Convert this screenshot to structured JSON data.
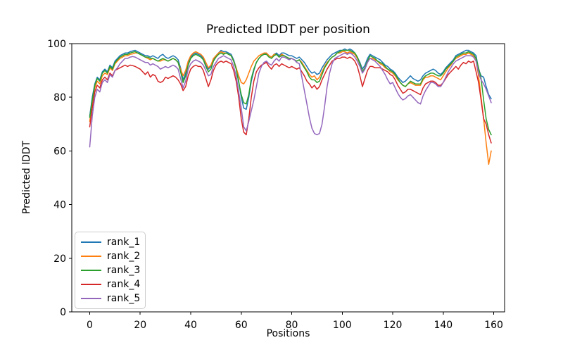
{
  "figure": {
    "background": "#ffffff"
  },
  "chart_data": {
    "type": "line",
    "title": "Predicted lDDT per position",
    "xlabel": "Positions",
    "ylabel": "Predicted lDDT",
    "xlim": [
      -7.1,
      164.3
    ],
    "ylim": [
      0,
      100
    ],
    "x_ticks": [
      0,
      20,
      40,
      60,
      80,
      100,
      120,
      140,
      160
    ],
    "y_ticks": [
      0,
      20,
      40,
      60,
      80,
      100
    ],
    "grid": false,
    "legend_position": "lower left",
    "x_start": 0,
    "x_step": 1,
    "series": [
      {
        "name": "rank_1",
        "color": "#1f77b4",
        "values": [
          73,
          80,
          85,
          87.5,
          86.5,
          89.5,
          90.5,
          89.5,
          92,
          91,
          93.5,
          94.5,
          95.5,
          96,
          96.5,
          96.5,
          97,
          97.3,
          97.5,
          97,
          96.5,
          96,
          95.5,
          95.5,
          95,
          95.5,
          95,
          94.5,
          95.5,
          96,
          95,
          94.5,
          95,
          95.5,
          95,
          94,
          91,
          86.5,
          89,
          93,
          95,
          96,
          96.5,
          96,
          95.5,
          94.5,
          92,
          90.5,
          91.5,
          94,
          95.5,
          96.5,
          97.5,
          97,
          97,
          96.5,
          96,
          94,
          91,
          86,
          80,
          76,
          75.5,
          80,
          86,
          90,
          93,
          94.5,
          95.5,
          96,
          96.5,
          95.5,
          95,
          96,
          96.5,
          95.5,
          96.5,
          96.5,
          96,
          95.5,
          95.5,
          95,
          94.5,
          95,
          94,
          93,
          91.5,
          90,
          89,
          89.5,
          88.5,
          89,
          91,
          92.5,
          94,
          95,
          96,
          96.5,
          97,
          97.5,
          97.5,
          98,
          97.5,
          98,
          97.5,
          96.5,
          95,
          93,
          90.5,
          92,
          94.5,
          96,
          95.5,
          95,
          94.5,
          94,
          93,
          92,
          91.5,
          90.5,
          90,
          89,
          87.5,
          86.5,
          85.5,
          86,
          87,
          88,
          87,
          86.5,
          86,
          86.5,
          88,
          89,
          89.5,
          90,
          90.5,
          90,
          89,
          88.5,
          89.5,
          91,
          92,
          93,
          94,
          95.5,
          96,
          96.5,
          97,
          97.5,
          97.5,
          97,
          96.5,
          95.5,
          90.5,
          88,
          87.5,
          84,
          81,
          79.5
        ]
      },
      {
        "name": "rank_2",
        "color": "#ff7f0e",
        "values": [
          71,
          78,
          83.5,
          86,
          85,
          88,
          89,
          88.5,
          91,
          90,
          92.5,
          93.5,
          94.5,
          95,
          95.5,
          95.5,
          96,
          96.2,
          96.5,
          96.5,
          96,
          95.5,
          95,
          94.5,
          94,
          94.5,
          94,
          93.5,
          93.5,
          94,
          94,
          93.5,
          94,
          94.5,
          94,
          93,
          90.5,
          88,
          90,
          93.5,
          95.5,
          96.5,
          97,
          96.5,
          96,
          95,
          93,
          91,
          92,
          94.5,
          95.5,
          96.5,
          97,
          96.5,
          96.5,
          96,
          95.5,
          93.5,
          91,
          88,
          85.5,
          85,
          86.5,
          89,
          91.5,
          93.5,
          94.5,
          95.5,
          96,
          96.5,
          96.5,
          95.5,
          95,
          96,
          96,
          95,
          96,
          95.5,
          95,
          94.5,
          94.5,
          94,
          93.5,
          94,
          93,
          91.5,
          90,
          88.5,
          87.5,
          88,
          86.5,
          87.5,
          89.5,
          91.5,
          93,
          94,
          95,
          95.5,
          96.5,
          96.5,
          97,
          97,
          96.5,
          97,
          96.5,
          96,
          94.5,
          92.5,
          89.5,
          91,
          93.5,
          94.5,
          94.5,
          94,
          93.5,
          92.5,
          92,
          91,
          90.5,
          89.5,
          89,
          88,
          86.5,
          85.5,
          84.5,
          84,
          85,
          85.5,
          85,
          84.5,
          84.5,
          84.5,
          86.5,
          87.5,
          87.5,
          88,
          88,
          87.5,
          87,
          86.5,
          88,
          89.5,
          91,
          92,
          93.5,
          94.5,
          95,
          95.5,
          96,
          96,
          96.5,
          96,
          95.5,
          93.5,
          88,
          80,
          72,
          63,
          55,
          60
        ]
      },
      {
        "name": "rank_3",
        "color": "#2ca02c",
        "values": [
          72.5,
          79,
          84.5,
          87,
          86,
          89,
          90,
          89,
          91.5,
          90.5,
          93,
          94,
          95,
          95.5,
          96,
          96,
          96.5,
          96.8,
          97,
          96.5,
          96,
          95.5,
          95,
          95,
          94.5,
          94.5,
          94,
          93.5,
          94,
          94.5,
          94,
          93.5,
          94,
          94.5,
          94,
          93,
          89.5,
          85.5,
          88,
          92,
          94.5,
          95.5,
          96,
          95.5,
          95,
          94,
          91.5,
          89.5,
          90.5,
          93.5,
          95,
          96,
          96.5,
          96,
          96.5,
          96,
          95.5,
          93.5,
          90.5,
          85.5,
          81,
          78,
          77.5,
          81,
          87,
          90.5,
          93,
          94.5,
          95.5,
          96,
          96,
          95,
          94.5,
          95.5,
          96,
          95,
          95.5,
          95.5,
          95,
          94.5,
          94.5,
          94,
          93.5,
          94,
          92.5,
          91,
          89.5,
          87.5,
          86.5,
          86.5,
          85.5,
          86,
          88.5,
          91,
          92.5,
          94,
          95,
          95.5,
          96.5,
          97,
          97.5,
          97.5,
          97.5,
          97.5,
          97,
          96.5,
          95,
          92.5,
          89.5,
          91,
          93.5,
          95.5,
          95,
          94.5,
          93.5,
          93,
          92.5,
          91.5,
          90.5,
          90,
          89.5,
          88.5,
          87,
          85.5,
          84.5,
          84,
          85,
          86,
          85.5,
          85,
          85,
          85,
          87,
          88,
          88.5,
          89,
          89,
          88.5,
          88,
          88,
          89,
          90.5,
          91.5,
          92.5,
          93.5,
          95,
          95.5,
          96,
          96.5,
          96.5,
          97,
          96.5,
          96,
          94.5,
          91,
          87,
          79,
          72,
          68,
          66
        ]
      },
      {
        "name": "rank_4",
        "color": "#d62728",
        "values": [
          69,
          76,
          82,
          84.5,
          83.5,
          86.5,
          87.5,
          86.5,
          89,
          88,
          90,
          90.5,
          91,
          91.5,
          92,
          91.5,
          92,
          91.8,
          91.5,
          91,
          90.5,
          89.5,
          88.5,
          89.5,
          87.5,
          88.5,
          88,
          86,
          85.5,
          86,
          87.5,
          87,
          87.5,
          88,
          87.5,
          86.5,
          85,
          82.5,
          84,
          88,
          90.5,
          91.5,
          92,
          91.5,
          91.5,
          90,
          87,
          84,
          86.5,
          90,
          92,
          93,
          93.5,
          93,
          93.5,
          93,
          92.5,
          90,
          86,
          80,
          72,
          67,
          66,
          72,
          80,
          86,
          89.5,
          91,
          92,
          92.5,
          93,
          91.5,
          90.5,
          92,
          92.5,
          91.5,
          92.5,
          92,
          91.5,
          91,
          91.5,
          91,
          90.5,
          91,
          89.5,
          88,
          86,
          85,
          83.5,
          84.5,
          83,
          84,
          86.5,
          88.5,
          90.5,
          92,
          93.5,
          94,
          94.5,
          94.5,
          95,
          95,
          94.5,
          95,
          94.5,
          93.5,
          91.5,
          88,
          84,
          87,
          90,
          91.5,
          91.5,
          91,
          91,
          91,
          90.5,
          90,
          89.5,
          88.5,
          88,
          86.5,
          84.5,
          83,
          81.5,
          82,
          83,
          83,
          82.5,
          82,
          81.5,
          81,
          83.5,
          85,
          85.5,
          86,
          86,
          85.5,
          84.5,
          84.5,
          85.5,
          87,
          88.5,
          89.5,
          90.5,
          91.5,
          90.5,
          92,
          93,
          92.5,
          93.5,
          93,
          93.5,
          89.5,
          85.5,
          79,
          72,
          70,
          66,
          63
        ]
      },
      {
        "name": "rank_5",
        "color": "#9467bd",
        "values": [
          61.5,
          73,
          80,
          83,
          82,
          85.5,
          86.5,
          85.5,
          88.5,
          87.5,
          90,
          91,
          92.5,
          93.5,
          94.5,
          94.5,
          95,
          95.2,
          95,
          94.5,
          94,
          93.5,
          93,
          93,
          92,
          92.5,
          92,
          91.5,
          90.5,
          91,
          91.5,
          91,
          91.5,
          92,
          91.5,
          90.5,
          87,
          83.5,
          86,
          90.5,
          92.5,
          93.5,
          94,
          93.5,
          93,
          92,
          90,
          88,
          88.5,
          91.5,
          93,
          94.5,
          95,
          95.5,
          95,
          94.5,
          94,
          91.5,
          88,
          82,
          76,
          69,
          67.5,
          71,
          75,
          79,
          84,
          89,
          91.5,
          93,
          93.5,
          92.5,
          92,
          93.5,
          94.5,
          93.5,
          95,
          95,
          94.5,
          94,
          94.5,
          94,
          93,
          92.5,
          87.5,
          82.5,
          77.5,
          72.5,
          68.5,
          66.5,
          66,
          66.5,
          70,
          76.5,
          84,
          89,
          92.5,
          94.5,
          95,
          95.5,
          96,
          96.5,
          96,
          96.5,
          96,
          95,
          93.5,
          91.5,
          89,
          90.5,
          93,
          94.5,
          94,
          93.5,
          92.5,
          91.5,
          90,
          88.5,
          86.5,
          85,
          85.5,
          83.5,
          81.5,
          80,
          79,
          79.5,
          80.5,
          81,
          80,
          79,
          78,
          77.5,
          80.5,
          82.5,
          84,
          85.5,
          85.5,
          85,
          84,
          84,
          85.5,
          87.5,
          89.5,
          91,
          92.5,
          93.5,
          94,
          94.5,
          95,
          95.5,
          95.5,
          95.5,
          95,
          93.5,
          89,
          86.5,
          85,
          83,
          80.5,
          78
        ]
      }
    ]
  }
}
